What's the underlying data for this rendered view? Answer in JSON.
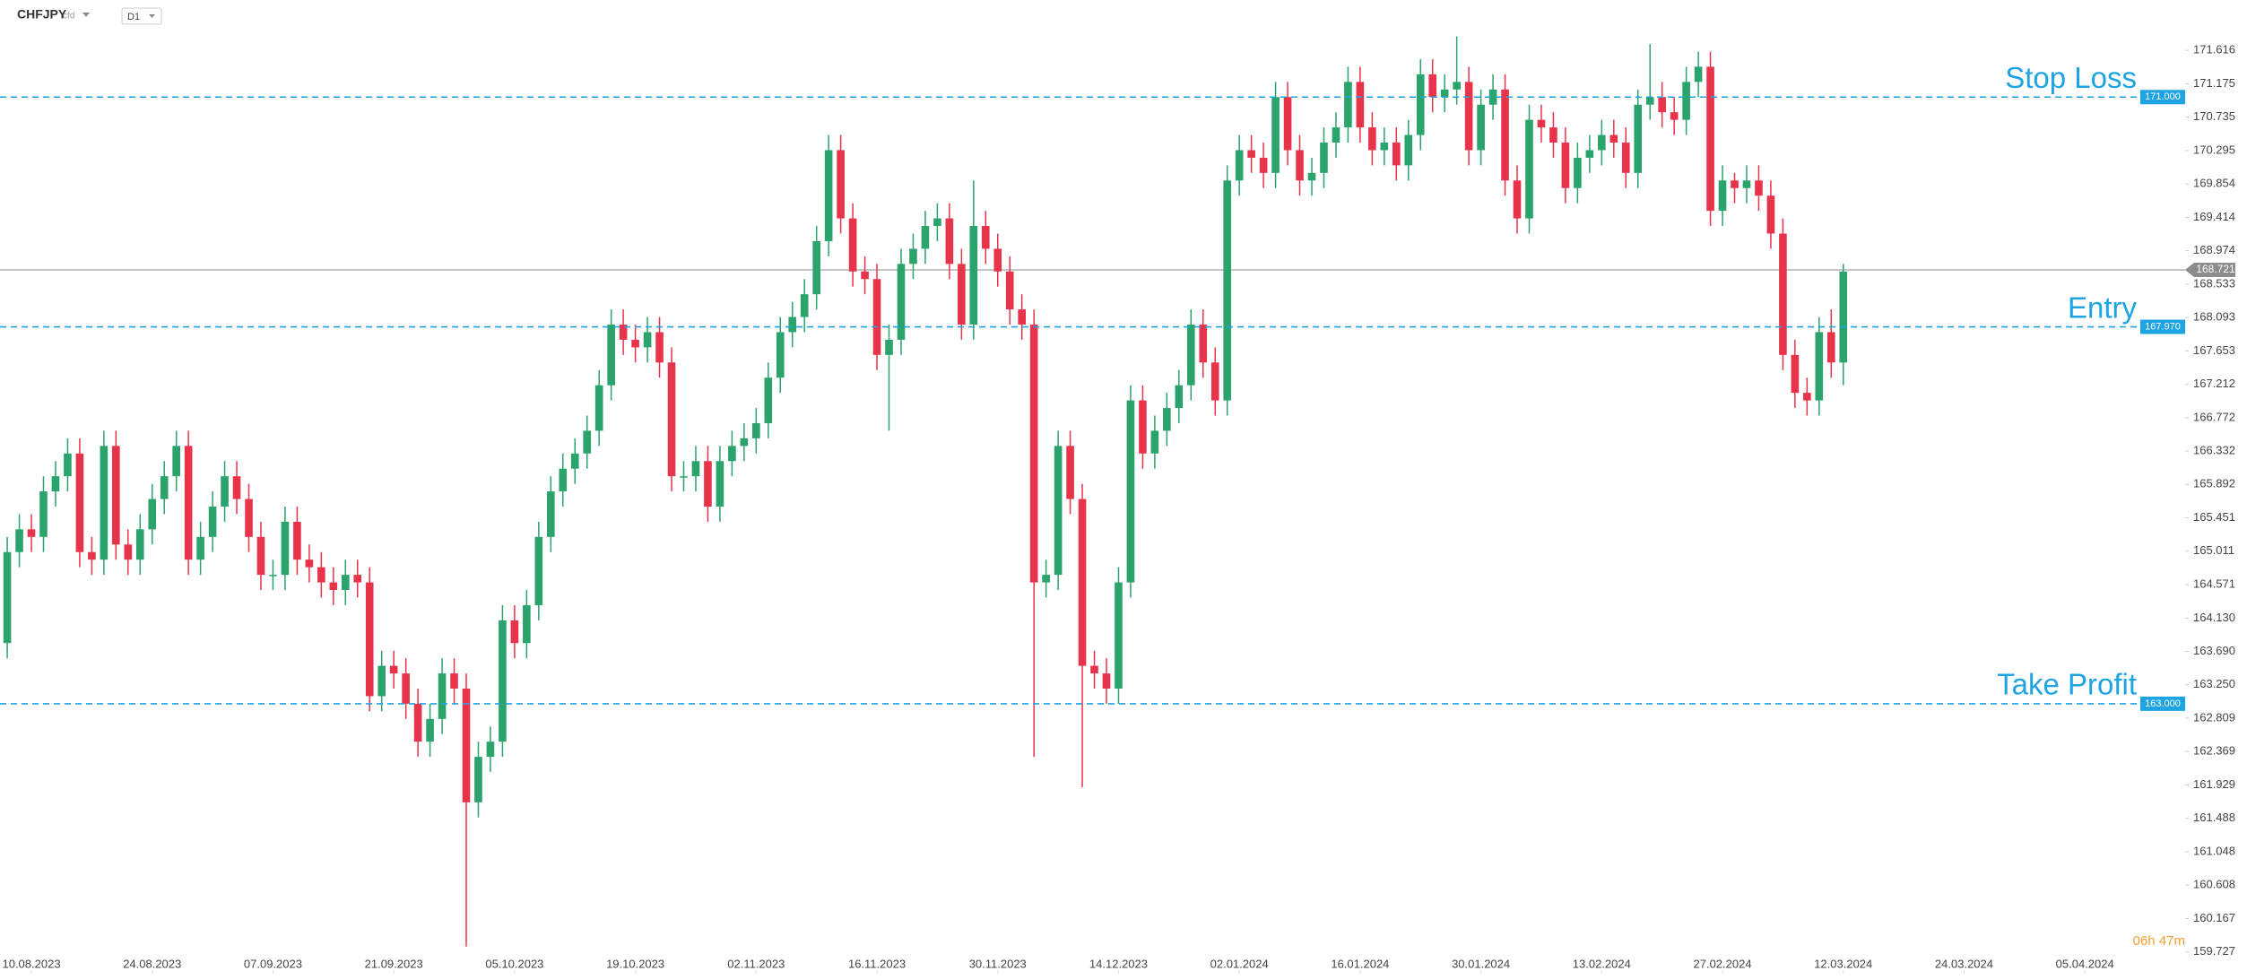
{
  "header": {
    "symbol": "CHFJPY",
    "instrument_type": "cfd",
    "timeframe": "D1",
    "countdown": "06h 47m"
  },
  "chart_data": {
    "type": "candlestick",
    "up_color": "#2aa36c",
    "down_color": "#e8344b",
    "level_color": "#1ea3e3",
    "last_price_color": "#8c8c8c",
    "open": [
      163.8,
      165.0,
      165.3,
      165.2,
      165.8,
      166.0,
      166.3,
      165.0,
      164.9,
      166.4,
      165.1,
      164.9,
      165.3,
      165.7,
      166.0,
      166.4,
      164.9,
      165.2,
      165.6,
      166.0,
      165.7,
      165.2,
      164.7,
      164.7,
      165.4,
      164.9,
      164.8,
      164.6,
      164.5,
      164.7,
      164.6,
      163.1,
      163.5,
      163.4,
      163.0,
      162.5,
      162.8,
      163.4,
      163.2,
      161.7,
      162.3,
      162.5,
      164.1,
      163.8,
      164.3,
      165.2,
      165.8,
      166.1,
      166.3,
      166.6,
      167.2,
      168.0,
      167.8,
      167.7,
      167.9,
      167.5,
      166.0,
      166.0,
      166.2,
      165.6,
      166.2,
      166.4,
      166.5,
      166.7,
      167.3,
      167.9,
      168.1,
      168.4,
      169.1,
      170.3,
      169.4,
      168.7,
      168.6,
      167.6,
      167.8,
      168.8,
      169.0,
      169.3,
      169.4,
      168.8,
      168.0,
      169.3,
      169.0,
      168.7,
      168.2,
      168.0,
      164.6,
      164.7,
      166.4,
      165.7,
      163.5,
      163.4,
      163.2,
      164.6,
      167.0,
      166.3,
      166.6,
      166.9,
      167.2,
      168.0,
      167.5,
      167.0,
      169.9,
      170.3,
      170.2,
      170.0,
      171.0,
      170.3,
      169.9,
      170.0,
      170.4,
      170.6,
      171.2,
      170.6,
      170.3,
      170.4,
      170.1,
      170.5,
      171.3,
      171.0,
      171.1,
      171.2,
      170.3,
      170.9,
      171.1,
      169.9,
      169.4,
      170.7,
      170.6,
      170.4,
      169.8,
      170.2,
      170.3,
      170.5,
      170.4,
      170.0,
      170.9,
      171.0,
      170.8,
      170.7,
      171.2,
      171.4,
      169.5,
      169.9,
      169.8,
      169.9,
      169.7,
      169.2,
      167.6,
      167.1,
      167.0,
      167.9,
      167.5
    ],
    "high": [
      165.2,
      165.5,
      165.5,
      166.0,
      166.2,
      166.5,
      166.5,
      165.2,
      166.6,
      166.6,
      165.3,
      165.5,
      165.9,
      166.2,
      166.6,
      166.6,
      165.4,
      165.8,
      166.2,
      166.2,
      165.9,
      165.4,
      164.9,
      165.6,
      165.6,
      165.1,
      165.0,
      164.8,
      164.9,
      164.9,
      164.8,
      163.7,
      163.7,
      163.6,
      163.2,
      163.0,
      163.6,
      163.6,
      163.4,
      162.5,
      162.7,
      164.3,
      164.3,
      164.5,
      165.4,
      166.0,
      166.3,
      166.5,
      166.8,
      167.4,
      168.2,
      168.2,
      168.0,
      168.1,
      168.1,
      167.7,
      166.2,
      166.4,
      166.4,
      166.4,
      166.6,
      166.7,
      166.9,
      167.5,
      168.1,
      168.3,
      168.6,
      169.3,
      170.5,
      170.5,
      169.6,
      168.9,
      168.8,
      168.0,
      169.0,
      169.2,
      169.5,
      169.6,
      169.6,
      169.0,
      169.9,
      169.5,
      169.2,
      168.9,
      168.4,
      168.2,
      164.9,
      166.6,
      166.6,
      165.9,
      163.7,
      163.6,
      164.8,
      167.2,
      167.2,
      166.8,
      167.1,
      167.4,
      168.2,
      168.2,
      167.7,
      170.1,
      170.5,
      170.5,
      170.4,
      171.2,
      171.2,
      170.5,
      170.2,
      170.6,
      170.8,
      171.4,
      171.4,
      170.8,
      170.6,
      170.6,
      170.7,
      171.5,
      171.5,
      171.3,
      171.8,
      171.4,
      171.1,
      171.3,
      171.3,
      170.1,
      170.9,
      170.9,
      170.8,
      170.6,
      170.4,
      170.5,
      170.7,
      170.7,
      170.6,
      171.1,
      171.7,
      171.2,
      171.0,
      171.4,
      171.6,
      171.6,
      170.1,
      170.0,
      170.1,
      170.1,
      169.9,
      169.4,
      167.8,
      167.3,
      168.1,
      168.2,
      168.8
    ],
    "low": [
      163.6,
      164.8,
      165.0,
      165.0,
      165.6,
      165.8,
      164.8,
      164.7,
      164.7,
      164.9,
      164.7,
      164.7,
      165.1,
      165.5,
      165.8,
      164.7,
      164.7,
      165.0,
      165.4,
      165.5,
      165.0,
      164.5,
      164.5,
      164.5,
      164.7,
      164.6,
      164.4,
      164.3,
      164.3,
      164.4,
      162.9,
      162.9,
      163.2,
      162.8,
      162.3,
      162.3,
      162.6,
      163.0,
      159.8,
      161.5,
      162.1,
      162.3,
      163.6,
      163.6,
      164.1,
      165.0,
      165.6,
      165.9,
      166.1,
      166.4,
      167.0,
      167.6,
      167.5,
      167.5,
      167.3,
      165.8,
      165.8,
      165.8,
      165.4,
      165.4,
      166.0,
      166.2,
      166.3,
      166.5,
      167.1,
      167.7,
      167.9,
      168.2,
      168.9,
      169.2,
      168.5,
      168.4,
      167.4,
      166.6,
      167.6,
      168.6,
      168.8,
      169.1,
      168.6,
      167.8,
      167.8,
      168.8,
      168.5,
      168.0,
      167.8,
      162.3,
      164.4,
      164.5,
      165.5,
      161.9,
      163.2,
      163.0,
      163.0,
      164.4,
      166.1,
      166.1,
      166.4,
      166.7,
      167.0,
      167.3,
      166.8,
      166.8,
      169.7,
      170.0,
      169.8,
      169.8,
      170.1,
      169.7,
      169.7,
      169.8,
      170.2,
      170.4,
      170.4,
      170.1,
      170.1,
      169.9,
      169.9,
      170.3,
      170.8,
      170.8,
      170.9,
      170.1,
      170.1,
      170.7,
      169.7,
      169.2,
      169.2,
      170.4,
      170.2,
      169.6,
      169.6,
      170.0,
      170.1,
      170.2,
      169.8,
      169.8,
      170.7,
      170.6,
      170.5,
      170.5,
      171.0,
      169.3,
      169.3,
      169.6,
      169.6,
      169.5,
      169.0,
      167.4,
      166.9,
      166.8,
      166.8,
      167.3,
      167.2
    ],
    "close": [
      165.0,
      165.3,
      165.2,
      165.8,
      166.0,
      166.3,
      165.0,
      164.9,
      166.4,
      165.1,
      164.9,
      165.3,
      165.7,
      166.0,
      166.4,
      164.9,
      165.2,
      165.6,
      166.0,
      165.7,
      165.2,
      164.7,
      164.7,
      165.4,
      164.9,
      164.8,
      164.6,
      164.5,
      164.7,
      164.6,
      163.1,
      163.5,
      163.4,
      163.0,
      162.5,
      162.8,
      163.4,
      163.2,
      161.7,
      162.3,
      162.5,
      164.1,
      163.8,
      164.3,
      165.2,
      165.8,
      166.1,
      166.3,
      166.6,
      167.2,
      168.0,
      167.8,
      167.7,
      167.9,
      167.5,
      166.0,
      166.0,
      166.2,
      165.6,
      166.2,
      166.4,
      166.5,
      166.7,
      167.3,
      167.9,
      168.1,
      168.4,
      169.1,
      170.3,
      169.4,
      168.7,
      168.6,
      167.6,
      167.8,
      168.8,
      169.0,
      169.3,
      169.4,
      168.8,
      168.0,
      169.3,
      169.0,
      168.7,
      168.2,
      168.0,
      164.6,
      164.7,
      166.4,
      165.7,
      163.5,
      163.4,
      163.2,
      164.6,
      167.0,
      166.3,
      166.6,
      166.9,
      167.2,
      168.0,
      167.5,
      167.0,
      169.9,
      170.3,
      170.2,
      170.0,
      171.0,
      170.3,
      169.9,
      170.0,
      170.4,
      170.6,
      171.2,
      170.6,
      170.3,
      170.4,
      170.1,
      170.5,
      171.3,
      171.0,
      171.1,
      171.2,
      170.3,
      170.9,
      171.1,
      169.9,
      169.4,
      170.7,
      170.6,
      170.4,
      169.8,
      170.2,
      170.3,
      170.5,
      170.4,
      170.0,
      170.9,
      171.0,
      170.8,
      170.7,
      171.2,
      171.4,
      169.5,
      169.9,
      169.8,
      169.9,
      169.7,
      169.2,
      167.6,
      167.1,
      167.0,
      167.9,
      167.5,
      168.7
    ],
    "ylim": [
      159.44,
      172.28
    ],
    "yticks": [
      171.616,
      171.175,
      170.735,
      170.295,
      169.854,
      169.414,
      168.974,
      168.533,
      168.093,
      167.653,
      167.212,
      166.772,
      166.332,
      165.892,
      165.451,
      165.011,
      164.571,
      {
        "value": 164.13,
        "label": "164.130"
      },
      {
        "value": 163.69,
        "label": "163.690"
      },
      {
        "value": 163.25,
        "label": "163.250"
      },
      162.809,
      162.369,
      161.929,
      161.488,
      161.048,
      160.608,
      160.167,
      159.727
    ],
    "xlim": [
      -0.6,
      180.3
    ],
    "xticks": [
      {
        "value": 2,
        "label": "10.08.2023"
      },
      {
        "value": 12,
        "label": "24.08.2023"
      },
      {
        "value": 22,
        "label": "07.09.2023"
      },
      {
        "value": 32,
        "label": "21.09.2023"
      },
      {
        "value": 42,
        "label": "05.10.2023"
      },
      {
        "value": 52,
        "label": "19.10.2023"
      },
      {
        "value": 62,
        "label": "02.11.2023"
      },
      {
        "value": 72,
        "label": "16.11.2023"
      },
      {
        "value": 82,
        "label": "30.11.2023"
      },
      {
        "value": 92,
        "label": "14.12.2023"
      },
      {
        "value": 102,
        "label": "02.01.2024"
      },
      {
        "value": 112,
        "label": "16.01.2024"
      },
      {
        "value": 122,
        "label": "30.01.2024"
      },
      {
        "value": 132,
        "label": "13.02.2024"
      },
      {
        "value": 142,
        "label": "27.02.2024"
      },
      {
        "value": 152,
        "label": "12.03.2024"
      },
      {
        "value": 162,
        "label": "24.03.2024"
      },
      {
        "value": 172,
        "label": "05.04.2024"
      }
    ],
    "levels": [
      {
        "name": "Stop Loss",
        "value": 171,
        "label": "171.000"
      },
      {
        "name": "Entry",
        "value": 167.97,
        "label": "167.970"
      },
      {
        "name": "Take Profit",
        "value": 163,
        "label": "163.000"
      }
    ],
    "last_price": 168.721,
    "grid": false
  }
}
